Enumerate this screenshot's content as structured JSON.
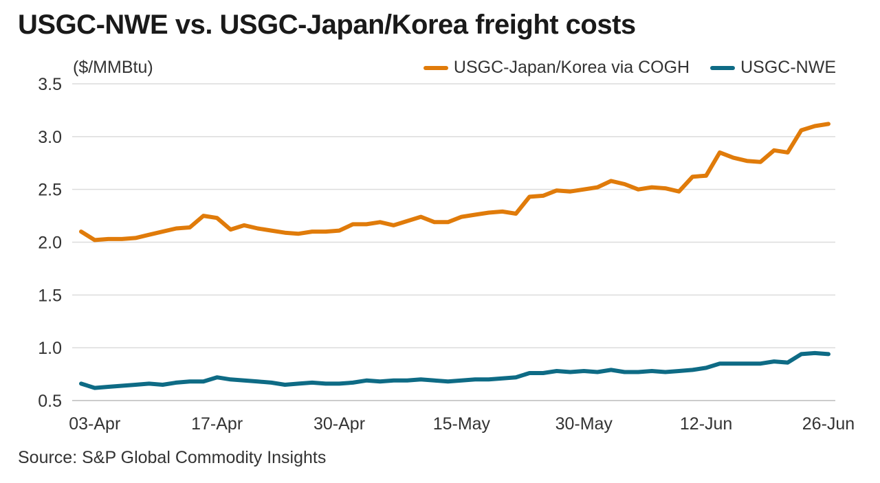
{
  "chart_data": {
    "type": "line",
    "title": "USGC-NWE vs. USGC-Japan/Korea freight costs",
    "ylabel": "($/MMBtu)",
    "xlabel": "",
    "ylim": [
      0.5,
      3.5
    ],
    "yticks": [
      "0.5",
      "1.0",
      "1.5",
      "2.0",
      "2.5",
      "3.0",
      "3.5"
    ],
    "xtick_labels": [
      {
        "index": 1,
        "label": "03-Apr"
      },
      {
        "index": 10,
        "label": "17-Apr"
      },
      {
        "index": 19,
        "label": "30-Apr"
      },
      {
        "index": 28,
        "label": "15-May"
      },
      {
        "index": 37,
        "label": "30-May"
      },
      {
        "index": 46,
        "label": "12-Jun"
      },
      {
        "index": 55,
        "label": "26-Jun"
      }
    ],
    "grid": true,
    "legend_position": "top-right",
    "series": [
      {
        "name": "USGC-Japan/Korea via COGH",
        "color": "#E07B0A",
        "values": [
          2.1,
          2.02,
          2.03,
          2.03,
          2.04,
          2.07,
          2.1,
          2.13,
          2.14,
          2.25,
          2.23,
          2.12,
          2.16,
          2.13,
          2.11,
          2.09,
          2.08,
          2.1,
          2.1,
          2.11,
          2.17,
          2.17,
          2.19,
          2.16,
          2.2,
          2.24,
          2.19,
          2.19,
          2.24,
          2.26,
          2.28,
          2.29,
          2.27,
          2.43,
          2.44,
          2.49,
          2.48,
          2.5,
          2.52,
          2.58,
          2.55,
          2.5,
          2.52,
          2.51,
          2.48,
          2.62,
          2.63,
          2.85,
          2.8,
          2.77,
          2.76,
          2.87,
          2.85,
          3.06,
          3.1,
          3.12
        ]
      },
      {
        "name": "USGC-NWE",
        "color": "#0E6B85",
        "values": [
          0.66,
          0.62,
          0.63,
          0.64,
          0.65,
          0.66,
          0.65,
          0.67,
          0.68,
          0.68,
          0.72,
          0.7,
          0.69,
          0.68,
          0.67,
          0.65,
          0.66,
          0.67,
          0.66,
          0.66,
          0.67,
          0.69,
          0.68,
          0.69,
          0.69,
          0.7,
          0.69,
          0.68,
          0.69,
          0.7,
          0.7,
          0.71,
          0.72,
          0.76,
          0.76,
          0.78,
          0.77,
          0.78,
          0.77,
          0.79,
          0.77,
          0.77,
          0.78,
          0.77,
          0.78,
          0.79,
          0.81,
          0.85,
          0.85,
          0.85,
          0.85,
          0.87,
          0.86,
          0.94,
          0.95,
          0.94
        ]
      }
    ],
    "source": "Source: S&P Global Commodity Insights"
  }
}
